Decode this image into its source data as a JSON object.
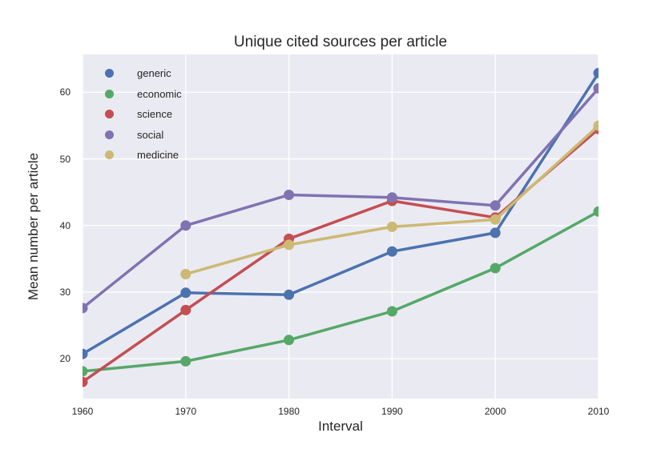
{
  "chart_data": {
    "type": "line",
    "title": "Unique cited sources per article",
    "xlabel": "Interval",
    "ylabel": "Mean number per article",
    "x": [
      1960,
      1970,
      1980,
      1990,
      2000,
      2010
    ],
    "xtick_labels": [
      "1960",
      "1970",
      "1980",
      "1990",
      "2000",
      "2010"
    ],
    "yticks": [
      20,
      30,
      40,
      50,
      60
    ],
    "xlim": [
      1960,
      2010
    ],
    "ylim": [
      14.0,
      65.7
    ],
    "grid": true,
    "legend_position": "upper left",
    "plot_bg_color": "#EAEAF2",
    "grid_color": "#FFFFFF",
    "text_color": "#262626",
    "series": [
      {
        "name": "generic",
        "color": "#4C72B0",
        "values": [
          20.7,
          29.9,
          29.6,
          36.1,
          38.9,
          62.9
        ]
      },
      {
        "name": "economic",
        "color": "#55A868",
        "values": [
          18.1,
          19.6,
          22.8,
          27.1,
          33.6,
          42.1
        ]
      },
      {
        "name": "science",
        "color": "#C44E52",
        "values": [
          16.5,
          27.3,
          38.0,
          43.7,
          41.2,
          54.5
        ]
      },
      {
        "name": "social",
        "color": "#8172B2",
        "values": [
          27.6,
          40.0,
          44.6,
          44.2,
          43.0,
          60.6
        ]
      },
      {
        "name": "medicine",
        "color": "#CCB974",
        "values": [
          null,
          32.7,
          37.1,
          39.8,
          40.9,
          55.0
        ]
      }
    ]
  }
}
